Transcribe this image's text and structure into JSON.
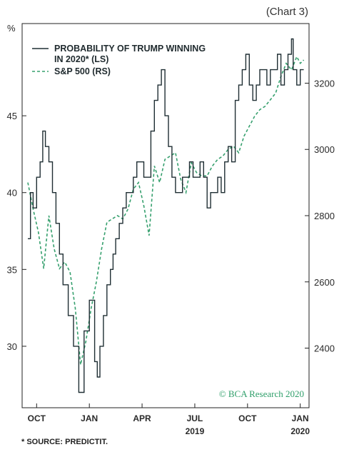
{
  "chart_number": "(Chart 3)",
  "footnote": "* SOURCE: PREDICTIT.",
  "credit": "© BCA Research 2020",
  "chart_data": {
    "type": "line",
    "left_axis_unit": "%",
    "left_ylim": [
      26,
      51
    ],
    "left_yticks": [
      30,
      35,
      40,
      45
    ],
    "right_ylim": [
      2220,
      3380
    ],
    "right_yticks": [
      2400,
      2600,
      2800,
      3000,
      3200
    ],
    "x_ticks": [
      "OCT",
      "JAN",
      "APR",
      "JUL",
      "OCT",
      "JAN"
    ],
    "year_labels": [
      "2019",
      "2020"
    ],
    "legend": [
      {
        "label_line1": "PROBABILITY OF TRUMP WINNING",
        "label_line2": "IN 2020* (LS)",
        "style": "solid"
      },
      {
        "label_line1": "S&P 500 (RS)",
        "style": "dashed"
      }
    ],
    "colors": {
      "trump": "#1f2e33",
      "sp500": "#36a06e"
    },
    "series": [
      {
        "name": "PROBABILITY OF TRUMP WINNING IN 2020* (LS)",
        "axis": "left",
        "x": [
          0.0,
          0.15,
          0.3,
          0.5,
          0.7,
          0.85,
          1.0,
          1.2,
          1.4,
          1.6,
          1.8,
          2.0,
          2.3,
          2.6,
          2.9,
          3.2,
          3.5,
          3.8,
          3.95,
          4.1,
          4.3,
          4.5,
          4.7,
          4.85,
          5.0,
          5.2,
          5.4,
          5.6,
          5.8,
          6.0,
          6.2,
          6.4,
          6.6,
          6.8,
          7.0,
          7.2,
          7.4,
          7.6,
          7.8,
          8.0,
          8.2,
          8.4,
          8.6,
          8.8,
          9.0,
          9.2,
          9.4,
          9.6,
          9.8,
          10.0,
          10.2,
          10.4,
          10.6,
          10.8,
          11.0,
          11.2,
          11.4,
          11.6,
          11.8,
          12.0,
          12.2,
          12.4,
          12.6,
          12.8,
          13.0,
          13.2,
          13.4,
          13.6,
          13.8,
          14.0,
          14.2,
          14.4,
          14.6,
          14.8,
          15.0,
          15.1,
          15.3,
          15.5,
          15.7
        ],
        "y": [
          37,
          40,
          39,
          41,
          42,
          44,
          43,
          42,
          40,
          38,
          36,
          34,
          32,
          30,
          27,
          31,
          33,
          29,
          28,
          30,
          32,
          34,
          35,
          36,
          37,
          38,
          39,
          40,
          40,
          41,
          42,
          42,
          41,
          41,
          44,
          46,
          47,
          48,
          45,
          43,
          41,
          40,
          40,
          41,
          41,
          42,
          41,
          41,
          42,
          41,
          39,
          40,
          40,
          41,
          40,
          42,
          43,
          42,
          46,
          47,
          48,
          49,
          47,
          46,
          47,
          48,
          48,
          47,
          48,
          48,
          49,
          47,
          48,
          49,
          50,
          48,
          47,
          48,
          48
        ]
      },
      {
        "name": "S&P 500 (RS)",
        "axis": "right",
        "x": [
          0.0,
          0.3,
          0.6,
          0.9,
          1.2,
          1.5,
          1.8,
          2.1,
          2.4,
          2.7,
          3.0,
          3.3,
          3.6,
          3.9,
          4.2,
          4.5,
          4.8,
          5.1,
          5.4,
          5.7,
          6.0,
          6.3,
          6.6,
          6.9,
          7.2,
          7.5,
          7.8,
          8.1,
          8.4,
          8.7,
          9.0,
          9.3,
          9.6,
          9.9,
          10.2,
          10.5,
          10.8,
          11.1,
          11.4,
          11.7,
          12.0,
          12.3,
          12.6,
          12.9,
          13.2,
          13.5,
          13.8,
          14.1,
          14.4,
          14.7,
          15.0,
          15.3,
          15.5,
          15.7
        ],
        "y": [
          2900,
          2820,
          2750,
          2640,
          2800,
          2700,
          2640,
          2660,
          2630,
          2520,
          2350,
          2420,
          2520,
          2600,
          2700,
          2780,
          2790,
          2800,
          2790,
          2820,
          2880,
          2900,
          2830,
          2740,
          2950,
          2900,
          2970,
          2980,
          2990,
          2910,
          2870,
          2960,
          2930,
          2920,
          2920,
          2950,
          2970,
          2980,
          3000,
          3010,
          2990,
          3040,
          3070,
          3100,
          3120,
          3130,
          3150,
          3170,
          3220,
          3260,
          3240,
          3280,
          3260,
          3270
        ]
      }
    ]
  }
}
